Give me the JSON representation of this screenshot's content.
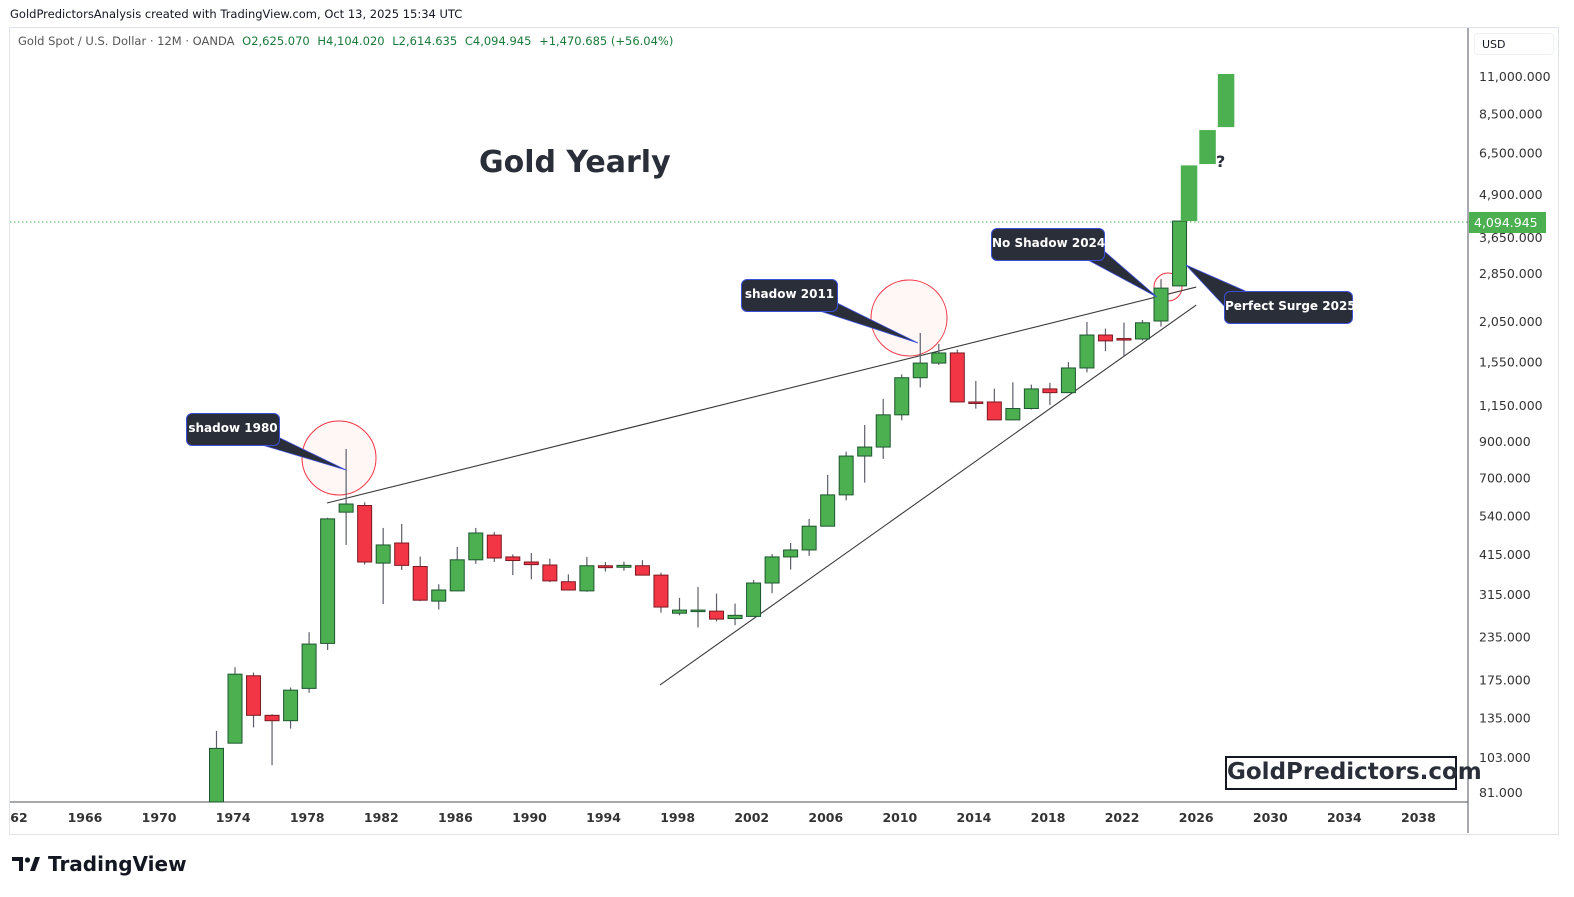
{
  "credit": "GoldPredictorsAnalysis created with TradingView.com, Oct 13, 2025 15:34 UTC",
  "legend": {
    "symbol": "Gold Spot / U.S. Dollar · 12M · OANDA",
    "open": "O2,625.070",
    "high": "H4,104.020",
    "low": "L2,614.635",
    "close": "C4,094.945",
    "change": "+1,470.685 (+56.04%)"
  },
  "currency": "USD",
  "title": "Gold Yearly",
  "watermark": "GoldPredictors.com",
  "brand": "TradingView",
  "annotations": {
    "shadow_1980": "shadow 1980",
    "shadow_2011": "shadow 2011",
    "no_shadow_2024": "No Shadow 2024",
    "perfect_surge_2025": "Perfect Surge 2025",
    "question": "?"
  },
  "colors": {
    "up": "#4caf50",
    "down": "#f23645",
    "up_border": "#1e5631",
    "down_border": "#7a1a22",
    "wick": "#5d606b",
    "last_price": "#4caf50",
    "circle": "#f23645",
    "callout": "#2a2e39"
  },
  "chart_data": {
    "type": "candlestick",
    "interval": "12M",
    "y_scale": "log",
    "ylim": [
      81,
      11000
    ],
    "last_price": 4094.945,
    "last_price_label": "4,094.945",
    "y_ticks": [
      {
        "value": 11000,
        "label": "11,000.000"
      },
      {
        "value": 8500,
        "label": "8,500.000"
      },
      {
        "value": 6500,
        "label": "6,500.000"
      },
      {
        "value": 4900,
        "label": "4,900.000"
      },
      {
        "value": 3650,
        "label": "3,650.000"
      },
      {
        "value": 2850,
        "label": "2,850.000"
      },
      {
        "value": 2050,
        "label": "2,050.000"
      },
      {
        "value": 1550,
        "label": "1,550.000"
      },
      {
        "value": 1150,
        "label": "1,150.000"
      },
      {
        "value": 900,
        "label": "900.000"
      },
      {
        "value": 700,
        "label": "700.000"
      },
      {
        "value": 540,
        "label": "540.000"
      },
      {
        "value": 415,
        "label": "415.000"
      },
      {
        "value": 315,
        "label": "315.000"
      },
      {
        "value": 235,
        "label": "235.000"
      },
      {
        "value": 175,
        "label": "175.000"
      },
      {
        "value": 135,
        "label": "135.000"
      },
      {
        "value": 103,
        "label": "103.000"
      },
      {
        "value": 81,
        "label": "81.000"
      }
    ],
    "x_ticks": [
      {
        "year": 1962,
        "label": "62"
      },
      {
        "year": 1966,
        "label": "1966"
      },
      {
        "year": 1970,
        "label": "1970"
      },
      {
        "year": 1974,
        "label": "1974"
      },
      {
        "year": 1978,
        "label": "1978"
      },
      {
        "year": 1982,
        "label": "1982"
      },
      {
        "year": 1986,
        "label": "1986"
      },
      {
        "year": 1990,
        "label": "1990"
      },
      {
        "year": 1994,
        "label": "1994"
      },
      {
        "year": 1998,
        "label": "1998"
      },
      {
        "year": 2002,
        "label": "2002"
      },
      {
        "year": 2006,
        "label": "2006"
      },
      {
        "year": 2010,
        "label": "2010"
      },
      {
        "year": 2014,
        "label": "2014"
      },
      {
        "year": 2018,
        "label": "2018"
      },
      {
        "year": 2022,
        "label": "2022"
      },
      {
        "year": 2026,
        "label": "2026"
      },
      {
        "year": 2030,
        "label": "2030"
      },
      {
        "year": 2034,
        "label": "2034"
      },
      {
        "year": 2038,
        "label": "2038"
      }
    ],
    "candles": [
      {
        "t": 1973,
        "o": 64,
        "h": 124,
        "l": 62,
        "c": 110
      },
      {
        "t": 1974,
        "o": 114,
        "h": 192,
        "l": 114,
        "c": 183
      },
      {
        "t": 1975,
        "o": 181,
        "h": 185,
        "l": 127,
        "c": 138
      },
      {
        "t": 1976,
        "o": 138,
        "h": 139,
        "l": 98,
        "c": 133
      },
      {
        "t": 1977,
        "o": 133,
        "h": 167,
        "l": 126,
        "c": 164
      },
      {
        "t": 1978,
        "o": 166,
        "h": 244,
        "l": 161,
        "c": 225
      },
      {
        "t": 1979,
        "o": 226,
        "h": 535,
        "l": 216,
        "c": 531
      },
      {
        "t": 1980,
        "o": 556,
        "h": 858,
        "l": 444,
        "c": 588
      },
      {
        "t": 1981,
        "o": 582,
        "h": 595,
        "l": 388,
        "c": 395
      },
      {
        "t": 1982,
        "o": 392,
        "h": 499,
        "l": 296,
        "c": 444
      },
      {
        "t": 1983,
        "o": 450,
        "h": 513,
        "l": 374,
        "c": 386
      },
      {
        "t": 1984,
        "o": 383,
        "h": 410,
        "l": 302,
        "c": 304
      },
      {
        "t": 1985,
        "o": 302,
        "h": 339,
        "l": 285,
        "c": 326
      },
      {
        "t": 1986,
        "o": 324,
        "h": 438,
        "l": 324,
        "c": 401
      },
      {
        "t": 1987,
        "o": 401,
        "h": 499,
        "l": 390,
        "c": 482
      },
      {
        "t": 1988,
        "o": 475,
        "h": 485,
        "l": 395,
        "c": 406
      },
      {
        "t": 1989,
        "o": 409,
        "h": 416,
        "l": 361,
        "c": 399
      },
      {
        "t": 1990,
        "o": 395,
        "h": 420,
        "l": 351,
        "c": 388
      },
      {
        "t": 1991,
        "o": 387,
        "h": 404,
        "l": 344,
        "c": 347
      },
      {
        "t": 1992,
        "o": 345,
        "h": 363,
        "l": 325,
        "c": 326
      },
      {
        "t": 1993,
        "o": 324,
        "h": 409,
        "l": 322,
        "c": 385
      },
      {
        "t": 1994,
        "o": 385,
        "h": 395,
        "l": 370,
        "c": 380
      },
      {
        "t": 1995,
        "o": 381,
        "h": 396,
        "l": 372,
        "c": 386
      },
      {
        "t": 1996,
        "o": 385,
        "h": 400,
        "l": 360,
        "c": 361
      },
      {
        "t": 1997,
        "o": 361,
        "h": 367,
        "l": 279,
        "c": 290
      },
      {
        "t": 1998,
        "o": 278,
        "h": 309,
        "l": 274,
        "c": 284
      },
      {
        "t": 1999,
        "o": 282,
        "h": 333,
        "l": 252,
        "c": 284
      },
      {
        "t": 2000,
        "o": 282,
        "h": 318,
        "l": 263,
        "c": 267
      },
      {
        "t": 2001,
        "o": 268,
        "h": 297,
        "l": 256,
        "c": 274
      },
      {
        "t": 2002,
        "o": 272,
        "h": 349,
        "l": 272,
        "c": 342
      },
      {
        "t": 2003,
        "o": 342,
        "h": 417,
        "l": 319,
        "c": 409
      },
      {
        "t": 2004,
        "o": 409,
        "h": 450,
        "l": 375,
        "c": 429
      },
      {
        "t": 2005,
        "o": 429,
        "h": 531,
        "l": 412,
        "c": 505
      },
      {
        "t": 2006,
        "o": 505,
        "h": 718,
        "l": 505,
        "c": 626
      },
      {
        "t": 2007,
        "o": 626,
        "h": 842,
        "l": 603,
        "c": 817
      },
      {
        "t": 2008,
        "o": 817,
        "h": 1011,
        "l": 681,
        "c": 869
      },
      {
        "t": 2009,
        "o": 869,
        "h": 1210,
        "l": 801,
        "c": 1084
      },
      {
        "t": 2010,
        "o": 1084,
        "h": 1431,
        "l": 1044,
        "c": 1398
      },
      {
        "t": 2011,
        "o": 1398,
        "h": 1900,
        "l": 1308,
        "c": 1546
      },
      {
        "t": 2012,
        "o": 1546,
        "h": 1763,
        "l": 1527,
        "c": 1657
      },
      {
        "t": 2013,
        "o": 1657,
        "h": 1696,
        "l": 1180,
        "c": 1184
      },
      {
        "t": 2014,
        "o": 1184,
        "h": 1367,
        "l": 1131,
        "c": 1173
      },
      {
        "t": 2015,
        "o": 1184,
        "h": 1297,
        "l": 1046,
        "c": 1047
      },
      {
        "t": 2016,
        "o": 1047,
        "h": 1355,
        "l": 1046,
        "c": 1132
      },
      {
        "t": 2017,
        "o": 1132,
        "h": 1334,
        "l": 1124,
        "c": 1295
      },
      {
        "t": 2018,
        "o": 1295,
        "h": 1350,
        "l": 1160,
        "c": 1262
      },
      {
        "t": 2019,
        "o": 1262,
        "h": 1557,
        "l": 1262,
        "c": 1495
      },
      {
        "t": 2020,
        "o": 1495,
        "h": 2051,
        "l": 1451,
        "c": 1874
      },
      {
        "t": 2021,
        "o": 1874,
        "h": 1959,
        "l": 1677,
        "c": 1800
      },
      {
        "t": 2022,
        "o": 1829,
        "h": 2041,
        "l": 1615,
        "c": 1824
      },
      {
        "t": 2023,
        "o": 1824,
        "h": 2078,
        "l": 1805,
        "c": 2038
      },
      {
        "t": 2024,
        "o": 2063,
        "h": 2750,
        "l": 1985,
        "c": 2585
      },
      {
        "t": 2025,
        "o": 2625,
        "h": 4104,
        "l": 2615,
        "c": 4095
      }
    ],
    "projection": [
      {
        "t": 2026,
        "from": 4095,
        "to": 6000
      },
      {
        "t": 2027,
        "from": 6055,
        "to": 7644
      },
      {
        "t": 2028,
        "from": 7800,
        "to": 11230
      }
    ],
    "trendlines": [
      {
        "from": {
          "t": 1979.07,
          "price": 592
        },
        "to": {
          "t": 2026.0,
          "price": 2604
        }
      },
      {
        "from": {
          "t": 1997.05,
          "price": 170
        },
        "to": {
          "t": 2026.0,
          "price": 2302
        }
      }
    ]
  }
}
